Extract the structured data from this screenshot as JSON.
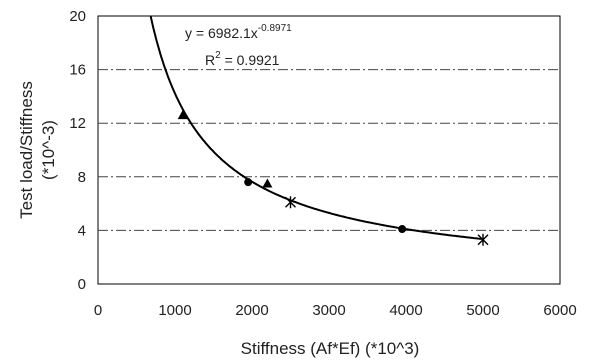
{
  "chart_data": {
    "type": "scatter",
    "xlabel": "Stiffness (Af*Ef) (*10^3)",
    "ylabel_line1": "Test load/Stiffness",
    "ylabel_line2": "(*10^-3)",
    "xlim": [
      0,
      6000
    ],
    "ylim": [
      0,
      20
    ],
    "x_ticks": [
      "0",
      "1000",
      "2000",
      "3000",
      "4000",
      "5000",
      "6000"
    ],
    "y_ticks": [
      "0",
      "4",
      "8",
      "12",
      "16",
      "20"
    ],
    "grid": "horizontal dash-dot",
    "series": [
      {
        "marker": "circle",
        "points": [
          [
            1950,
            7.6
          ],
          [
            3950,
            4.1
          ]
        ]
      },
      {
        "marker": "triangle",
        "points": [
          [
            1100,
            12.6
          ],
          [
            2200,
            7.5
          ]
        ]
      },
      {
        "marker": "star",
        "points": [
          [
            2500,
            6.1
          ],
          [
            5000,
            3.3
          ]
        ]
      }
    ],
    "trendline": {
      "type": "power",
      "coefficient": 6982.1,
      "exponent": -0.8971,
      "equation_base": "y = 6982.1x",
      "equation_exp": "-0.8971",
      "r2_label": "R",
      "r2_sup": "2",
      "r2_value": " = 0.9921"
    }
  }
}
